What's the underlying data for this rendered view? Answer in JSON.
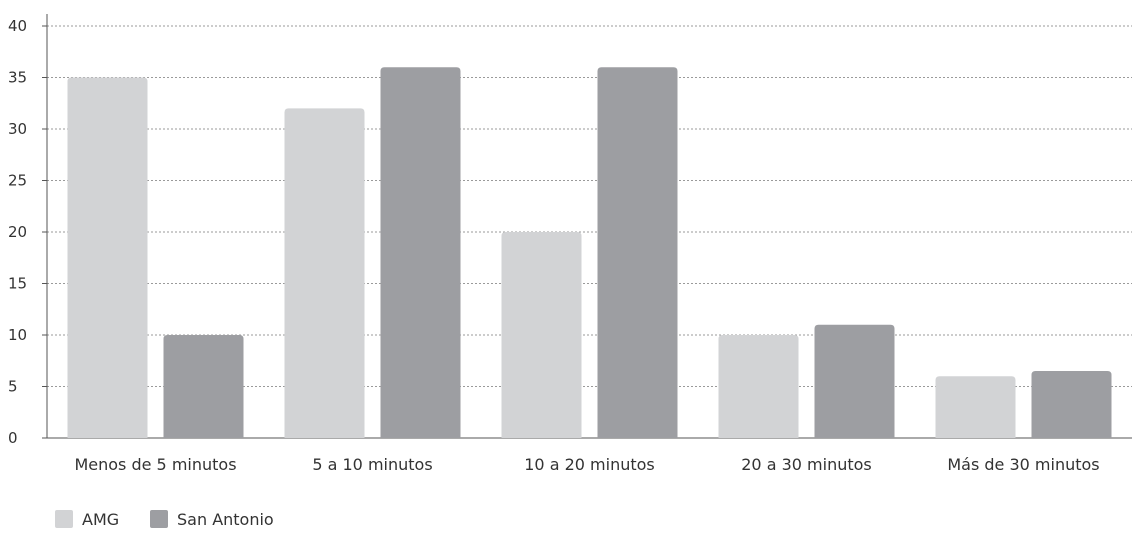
{
  "chart_data": {
    "type": "bar",
    "categories": [
      "Menos de 5  minutos",
      "5 a 10 minutos",
      "10 a 20 minutos",
      "20 a 30 minutos",
      "Más de 30 minutos"
    ],
    "series": [
      {
        "name": "AMG",
        "values": [
          35,
          32,
          20,
          10,
          6
        ],
        "color": "#d2d3d5"
      },
      {
        "name": "San Antonio",
        "values": [
          10,
          36,
          36,
          11,
          6.5
        ],
        "color": "#9d9ea2"
      }
    ],
    "title": "",
    "xlabel": "",
    "ylabel": "",
    "ylim": [
      0,
      40
    ],
    "yticks": [
      "0",
      "5",
      "10",
      "15",
      "20",
      "25",
      "30",
      "35",
      "40"
    ],
    "grid": true,
    "legend": "bottom-left"
  }
}
